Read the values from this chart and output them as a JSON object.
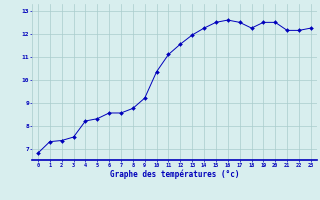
{
  "x": [
    0,
    1,
    2,
    3,
    4,
    5,
    6,
    7,
    8,
    9,
    10,
    11,
    12,
    13,
    14,
    15,
    16,
    17,
    18,
    19,
    20,
    21,
    22,
    23
  ],
  "y": [
    6.8,
    7.3,
    7.35,
    7.5,
    8.2,
    8.3,
    8.55,
    8.55,
    8.75,
    9.2,
    10.35,
    11.1,
    11.55,
    11.95,
    12.25,
    12.5,
    12.6,
    12.5,
    12.25,
    12.5,
    12.5,
    12.15,
    12.15,
    12.25
  ],
  "line_color": "#0000bb",
  "marker_color": "#0000bb",
  "bg_color": "#d8eeee",
  "grid_color": "#aacccc",
  "axis_label_color": "#0000bb",
  "tick_color": "#0000bb",
  "xlabel": "Graphe des températures (°c)",
  "ylim": [
    6.5,
    13.3
  ],
  "yticks": [
    7,
    8,
    9,
    10,
    11,
    12,
    13
  ],
  "xlim": [
    -0.5,
    23.5
  ],
  "xticks": [
    0,
    1,
    2,
    3,
    4,
    5,
    6,
    7,
    8,
    9,
    10,
    11,
    12,
    13,
    14,
    15,
    16,
    17,
    18,
    19,
    20,
    21,
    22,
    23
  ]
}
